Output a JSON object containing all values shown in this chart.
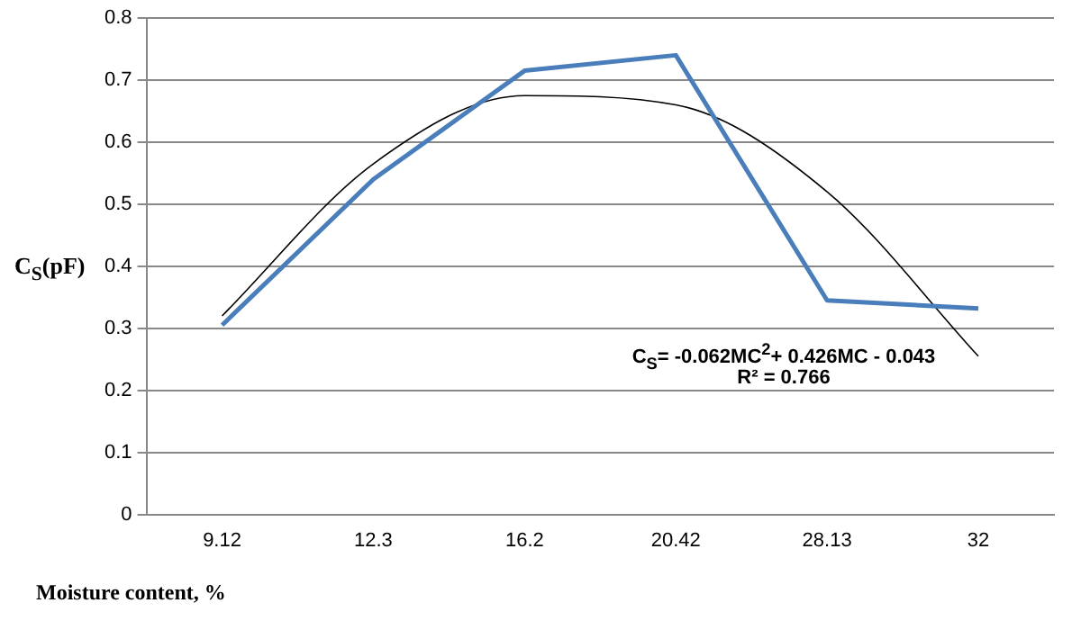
{
  "chart_data": {
    "type": "line",
    "xlabel": "Moisture content, %",
    "ylabel": "C$_{S}$(pF)",
    "categories": [
      "9.12",
      "12.3",
      "16.2",
      "20.42",
      "28.13",
      "32"
    ],
    "ylim": [
      0,
      0.8
    ],
    "yticks": [
      0,
      0.1,
      0.2,
      0.3,
      0.4,
      0.5,
      0.6,
      0.7,
      0.8
    ],
    "grid": "y",
    "legend": false,
    "marker": "none",
    "series": [
      {
        "color": "#4a7ebb",
        "values": [
          0.305,
          0.54,
          0.715,
          0.74,
          0.345,
          0.332
        ]
      },
      {
        "type": "line",
        "color": "#000000",
        "values": [
          0.32,
          0.565,
          0.675,
          0.66,
          0.52,
          0.255
        ]
      }
    ],
    "annotations": [
      "C$_{S}$= -0.062MC$^{2}$+ 0.426MC - 0.043",
      "R² = 0.766"
    ]
  }
}
